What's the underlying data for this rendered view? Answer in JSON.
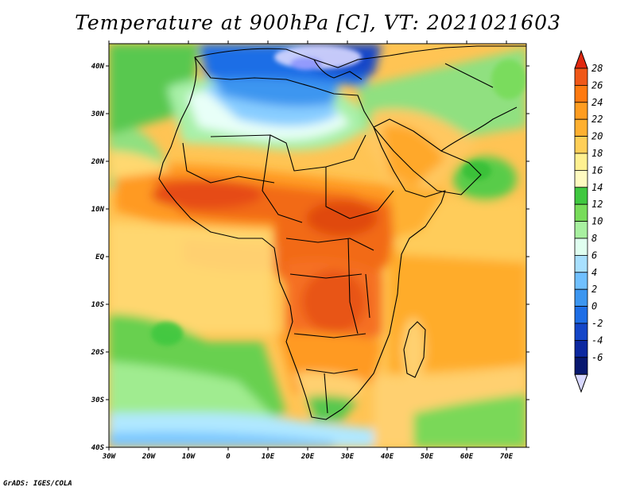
{
  "title": "Temperature at 900hPa [C], VT: 2021021603",
  "credit": "GrADS: IGES/COLA",
  "map": {
    "lat_labels": [
      "40N",
      "30N",
      "20N",
      "10N",
      "EQ",
      "10S",
      "20S",
      "30S",
      "40S"
    ],
    "lon_labels": [
      "30W",
      "20W",
      "10W",
      "0",
      "10E",
      "20E",
      "30E",
      "40E",
      "50E",
      "60E",
      "70E"
    ]
  },
  "colorbar": {
    "levels": [
      {
        "label": "28",
        "color": "#f05818"
      },
      {
        "label": "26",
        "color": "#ff7a10"
      },
      {
        "label": "24",
        "color": "#ff9d20"
      },
      {
        "label": "22",
        "color": "#ffb030"
      },
      {
        "label": "20",
        "color": "#ffcf58"
      },
      {
        "label": "18",
        "color": "#fff090"
      },
      {
        "label": "16",
        "color": "#fffac0"
      },
      {
        "label": "14",
        "color": "#40c840"
      },
      {
        "label": "12",
        "color": "#78dc5a"
      },
      {
        "label": "10",
        "color": "#a8f0a0"
      },
      {
        "label": "8",
        "color": "#e0fff0"
      },
      {
        "label": "6",
        "color": "#a8e0ff"
      },
      {
        "label": "4",
        "color": "#70c0ff"
      },
      {
        "label": "2",
        "color": "#3c96f0"
      },
      {
        "label": "0",
        "color": "#1e6ee6"
      },
      {
        "label": "-2",
        "color": "#1446c8"
      },
      {
        "label": "-4",
        "color": "#0c28a0"
      },
      {
        "label": "-6",
        "color": "#081870"
      }
    ],
    "top_color": "#e02810",
    "bottom_color": "#d8d8ff"
  }
}
